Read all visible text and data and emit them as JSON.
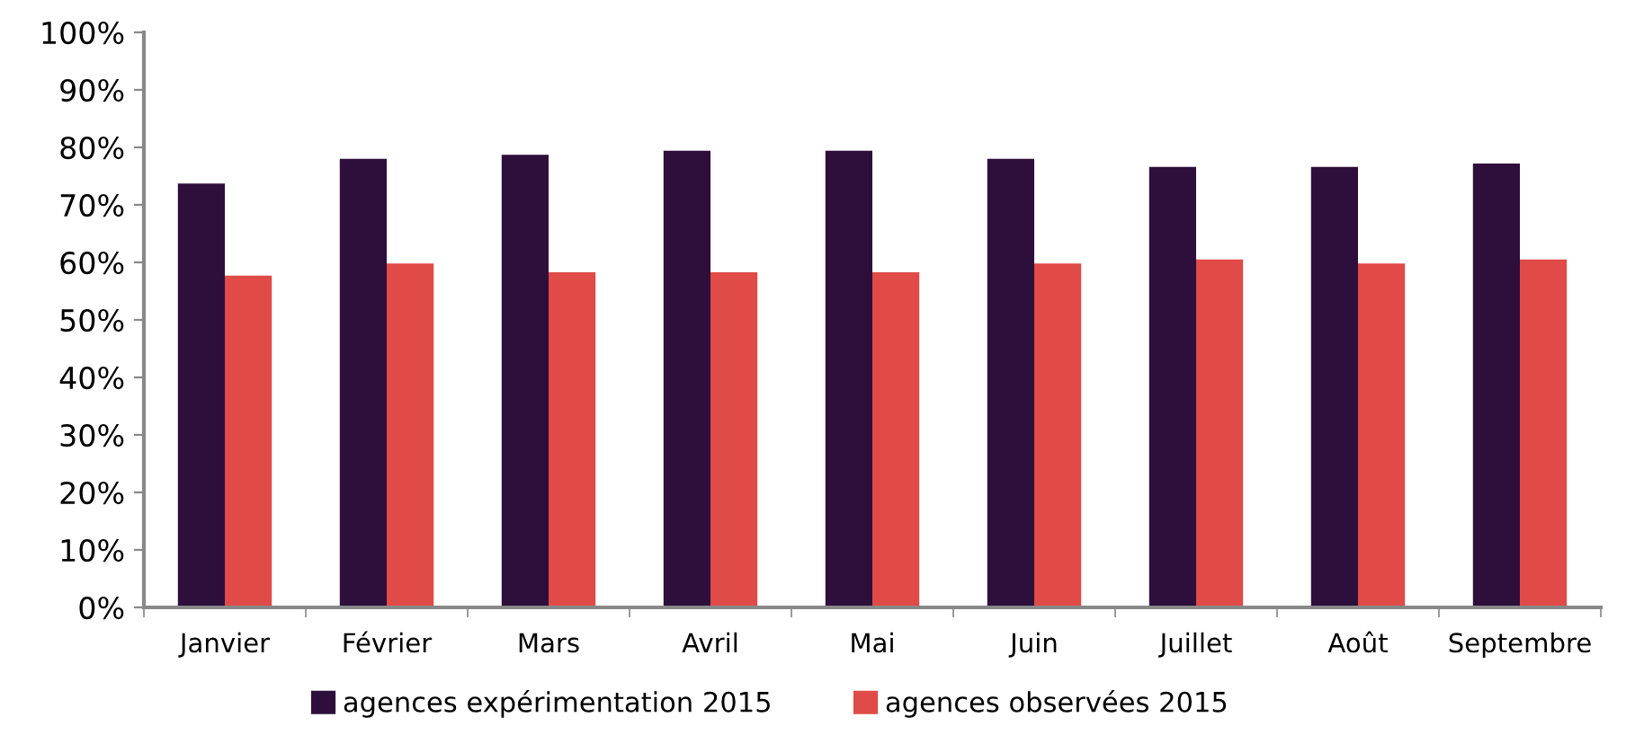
{
  "chart_data": {
    "type": "bar",
    "categories": [
      "Janvier",
      "Février",
      "Mars",
      "Avril",
      "Mai",
      "Juin",
      "Juillet",
      "Août",
      "Septembre"
    ],
    "series": [
      {
        "name": "agences expérimentation 2015",
        "color": "#2e0f3c",
        "values": [
          73.7,
          78,
          78.7,
          79.4,
          79.4,
          78,
          76.6,
          76.6,
          77.2
        ]
      },
      {
        "name": "agences observées 2015",
        "color": "#e04b47",
        "values": [
          57.7,
          59.8,
          58.3,
          58.3,
          58.3,
          59.8,
          60.5,
          59.8,
          60.5
        ]
      }
    ],
    "ylim": [
      0,
      100
    ],
    "yticks": [
      {
        "value": 0,
        "label": "0%"
      },
      {
        "value": 10,
        "label": "10%"
      },
      {
        "value": 20,
        "label": "20%"
      },
      {
        "value": 30,
        "label": "30%"
      },
      {
        "value": 40,
        "label": "40%"
      },
      {
        "value": 50,
        "label": "50%"
      },
      {
        "value": 60,
        "label": "60%"
      },
      {
        "value": 70,
        "label": "70%"
      },
      {
        "value": 80,
        "label": "80%"
      },
      {
        "value": 90,
        "label": "90%"
      },
      {
        "value": 100,
        "label": "100%"
      }
    ],
    "grid": false,
    "legend": "bottom"
  }
}
